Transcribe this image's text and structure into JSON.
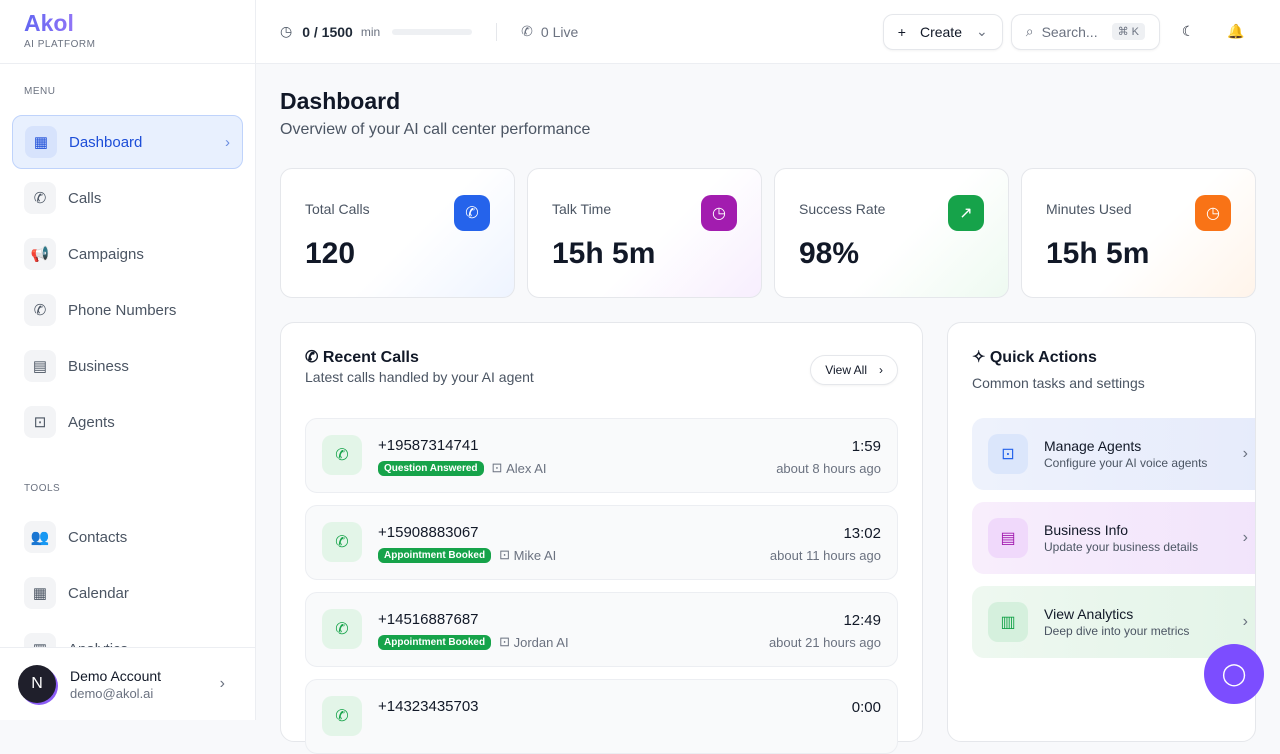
{
  "brand": {
    "name": "Akol",
    "tagline": "AI PLATFORM"
  },
  "sidebar": {
    "menu_label": "MENU",
    "tools_label": "TOOLS",
    "menu": [
      {
        "label": "Dashboard"
      },
      {
        "label": "Calls"
      },
      {
        "label": "Campaigns"
      },
      {
        "label": "Phone Numbers"
      },
      {
        "label": "Business"
      },
      {
        "label": "Agents"
      }
    ],
    "tools": [
      {
        "label": "Contacts"
      },
      {
        "label": "Calendar"
      },
      {
        "label": "Analytics"
      }
    ],
    "account": {
      "initial": "N",
      "name": "Demo Account",
      "email": "demo@akol.ai"
    }
  },
  "topbar": {
    "usage": "0 / 1500",
    "usage_unit": "min",
    "usage_fraction": 0,
    "live": "0 Live",
    "create": "Create",
    "search_placeholder": "Search...",
    "shortcut": "⌘ K"
  },
  "page": {
    "title": "Dashboard",
    "subtitle": "Overview of your AI call center performance"
  },
  "stats": [
    {
      "label": "Total Calls",
      "value": "120",
      "color": "#2563eb"
    },
    {
      "label": "Talk Time",
      "value": "15h 5m",
      "color": "#a21caf"
    },
    {
      "label": "Success Rate",
      "value": "98%",
      "color": "#16a34a"
    },
    {
      "label": "Minutes Used",
      "value": "15h 5m",
      "color": "#f97316"
    }
  ],
  "recent": {
    "title": "Recent Calls",
    "subtitle": "Latest calls handled by your AI agent",
    "view_all": "View All",
    "calls": [
      {
        "number": "+19587314741",
        "status": "Question Answered",
        "agent": "Alex AI",
        "duration": "1:59",
        "ago": "about 8 hours ago"
      },
      {
        "number": "+15908883067",
        "status": "Appointment Booked",
        "agent": "Mike AI",
        "duration": "13:02",
        "ago": "about 11 hours ago"
      },
      {
        "number": "+14516887687",
        "status": "Appointment Booked",
        "agent": "Jordan AI",
        "duration": "12:49",
        "ago": "about 21 hours ago"
      },
      {
        "number": "+14323435703",
        "duration": "0:00"
      }
    ]
  },
  "quick": {
    "title": "Quick Actions",
    "subtitle": "Common tasks and settings",
    "items": [
      {
        "title": "Manage Agents",
        "desc": "Configure your AI voice agents"
      },
      {
        "title": "Business Info",
        "desc": "Update your business details"
      },
      {
        "title": "View Analytics",
        "desc": "Deep dive into your metrics"
      }
    ]
  }
}
